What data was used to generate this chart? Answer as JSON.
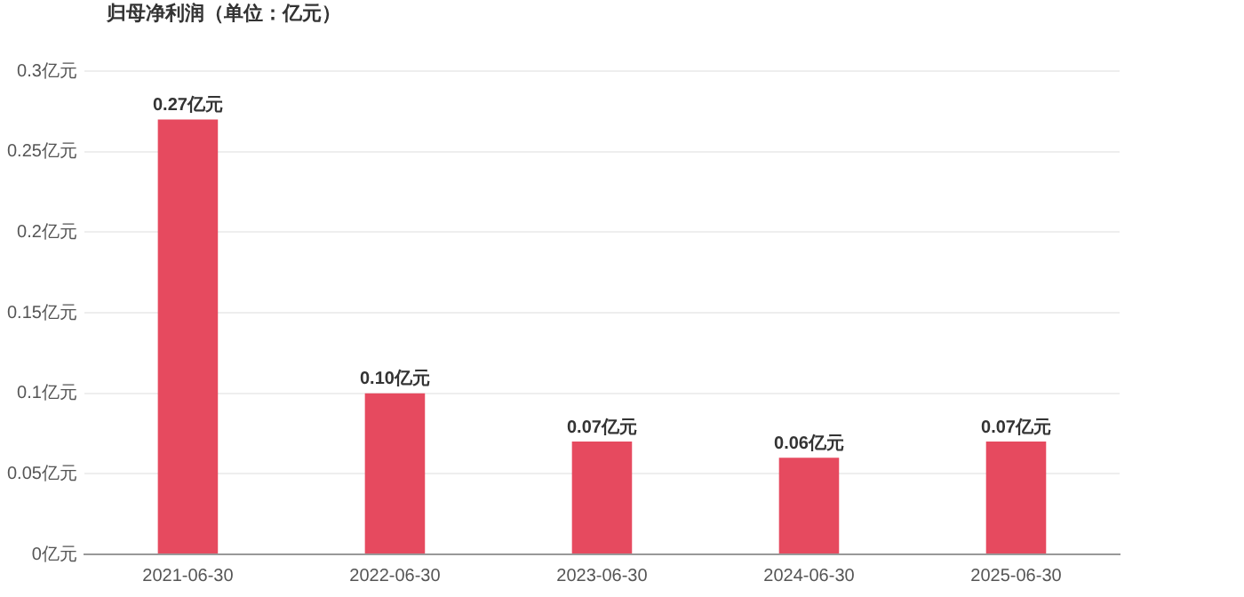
{
  "chart_data": {
    "type": "bar",
    "title": "归母净利润（单位：亿元）",
    "categories": [
      "2021-06-30",
      "2022-06-30",
      "2023-06-30",
      "2024-06-30",
      "2025-06-30"
    ],
    "values": [
      0.27,
      0.1,
      0.07,
      0.06,
      0.07
    ],
    "value_labels": [
      "0.27亿元",
      "0.10亿元",
      "0.07亿元",
      "0.06亿元",
      "0.07亿元"
    ],
    "color": "#e64a5f",
    "ylim": [
      0,
      0.3
    ],
    "yticks": [
      {
        "value": 0,
        "label": "0亿元"
      },
      {
        "value": 0.05,
        "label": "0.05亿元"
      },
      {
        "value": 0.1,
        "label": "0.1亿元"
      },
      {
        "value": 0.15,
        "label": "0.15亿元"
      },
      {
        "value": 0.2,
        "label": "0.2亿元"
      },
      {
        "value": 0.25,
        "label": "0.25亿元"
      },
      {
        "value": 0.3,
        "label": "0.3亿元"
      }
    ],
    "grid": "y",
    "legend": false
  }
}
